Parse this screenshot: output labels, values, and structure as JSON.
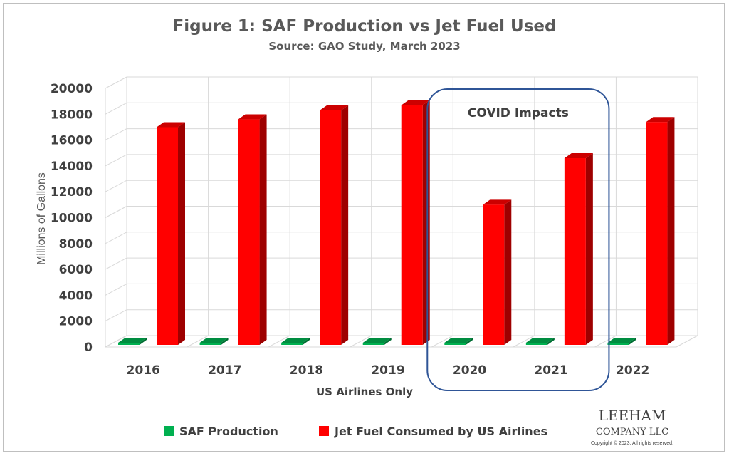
{
  "chart_data": {
    "type": "bar",
    "title": "Figure 1: SAF Production vs Jet Fuel Used",
    "subtitle": "Source: GAO Study, March 2023",
    "xlabel": "US Airlines Only",
    "ylabel": "Millions of Gallons",
    "ylim": [
      0,
      20000
    ],
    "yticks": [
      0,
      2000,
      4000,
      6000,
      8000,
      10000,
      12000,
      14000,
      16000,
      18000,
      20000
    ],
    "categories": [
      "2016",
      "2017",
      "2018",
      "2019",
      "2020",
      "2021",
      "2022"
    ],
    "series": [
      {
        "name": "SAF Production",
        "color": "#00b050",
        "values": [
          0,
          0,
          0,
          0,
          0,
          0,
          0
        ]
      },
      {
        "name": "Jet Fuel Consumed by US Airlines",
        "color": "#ff0000",
        "values": [
          17000,
          17600,
          18300,
          18700,
          11000,
          14600,
          17400
        ]
      }
    ],
    "annotation": {
      "text": "COVID Impacts",
      "categories": [
        "2020",
        "2021"
      ]
    },
    "grid": true,
    "legend": "bottom"
  },
  "logo": {
    "name_top": "LEEHAM",
    "name_bottom": "COMPANY LLC",
    "copyright": "Copyright © 2023, All rights reserved."
  }
}
